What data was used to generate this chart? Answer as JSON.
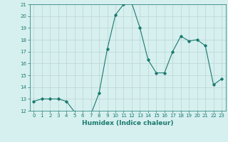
{
  "x": [
    0,
    1,
    2,
    3,
    4,
    5,
    6,
    7,
    8,
    9,
    10,
    11,
    12,
    13,
    14,
    15,
    16,
    17,
    18,
    19,
    20,
    21,
    22,
    23
  ],
  "y": [
    12.8,
    13.0,
    13.0,
    13.0,
    12.8,
    11.9,
    11.8,
    11.7,
    13.5,
    17.2,
    20.1,
    21.0,
    21.1,
    19.0,
    16.3,
    15.2,
    15.2,
    17.0,
    18.3,
    17.9,
    18.0,
    17.5,
    14.2,
    14.7
  ],
  "xlabel": "Humidex (Indice chaleur)",
  "ylim": [
    12,
    21
  ],
  "xlim": [
    -0.5,
    23.5
  ],
  "line_color": "#1a7a6e",
  "marker": "D",
  "marker_size": 1.8,
  "bg_color": "#d6efef",
  "grid_color": "#c0d8d8",
  "yticks": [
    12,
    13,
    14,
    15,
    16,
    17,
    18,
    19,
    20,
    21
  ],
  "xticks": [
    0,
    1,
    2,
    3,
    4,
    5,
    6,
    7,
    8,
    9,
    10,
    11,
    12,
    13,
    14,
    15,
    16,
    17,
    18,
    19,
    20,
    21,
    22,
    23
  ],
  "tick_fontsize": 5.0,
  "xlabel_fontsize": 6.5,
  "linewidth": 0.8
}
